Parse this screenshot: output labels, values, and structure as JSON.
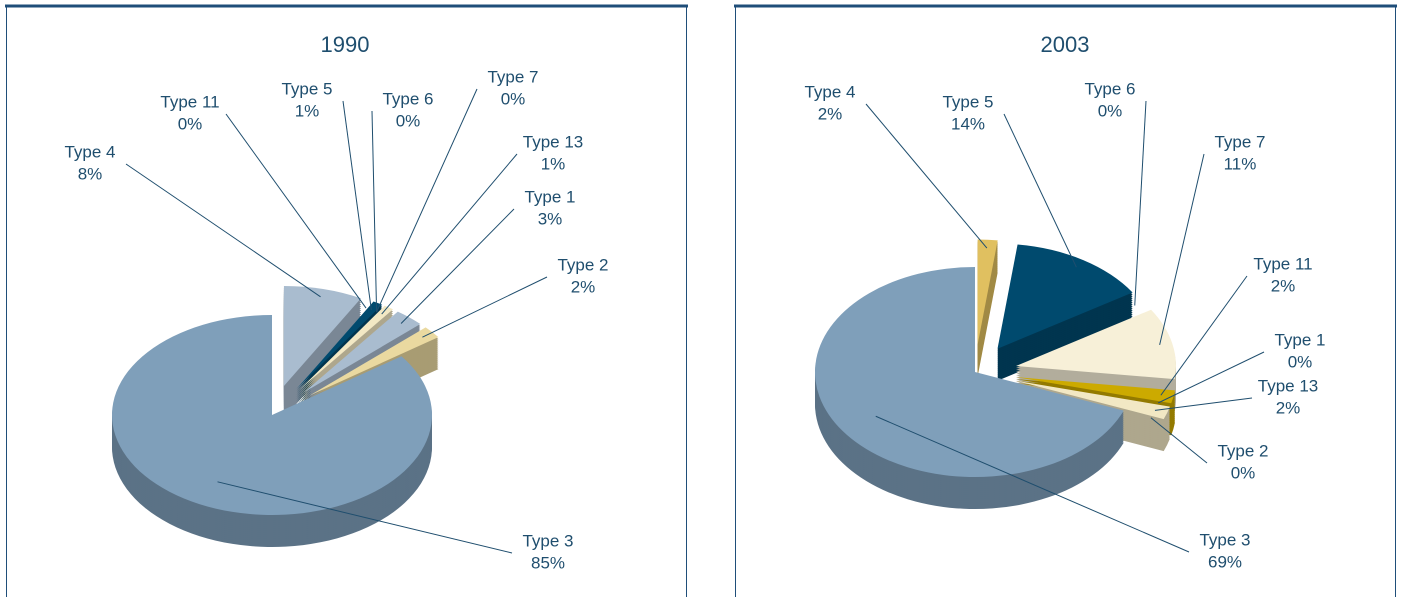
{
  "chart_data": [
    {
      "type": "pie",
      "title": "1990",
      "categories": [
        "Type 4",
        "Type 11",
        "Type 5",
        "Type 6",
        "Type 7",
        "Type 13",
        "Type 1",
        "Type 2",
        "Type 3"
      ],
      "values": [
        8,
        0,
        1,
        0,
        0,
        1,
        3,
        2,
        85
      ],
      "value_labels": [
        "8%",
        "0%",
        "1%",
        "0%",
        "0%",
        "1%",
        "3%",
        "2%",
        "85%"
      ],
      "colors": [
        "#a9bccf",
        "#ccaa00",
        "#004a6e",
        "#4a7a9e",
        "#ccaa00",
        "#f2e8c4",
        "#a9bccf",
        "#ead9a0",
        "#7f9fba"
      ]
    },
    {
      "type": "pie",
      "title": "2003",
      "categories": [
        "Type 4",
        "Type 5",
        "Type 6",
        "Type 7",
        "Type 11",
        "Type 1",
        "Type 13",
        "Type 2",
        "Type 3"
      ],
      "values": [
        2,
        14,
        0,
        11,
        2,
        0,
        2,
        0,
        69
      ],
      "value_labels": [
        "2%",
        "14%",
        "0%",
        "11%",
        "2%",
        "0%",
        "2%",
        "0%",
        "69%"
      ],
      "colors": [
        "#e0c060",
        "#004a6e",
        "#4a7a9e",
        "#f7f0d8",
        "#ccaa00",
        "#a9bccf",
        "#f2e8c4",
        "#ccaa00",
        "#7f9fba"
      ]
    }
  ]
}
